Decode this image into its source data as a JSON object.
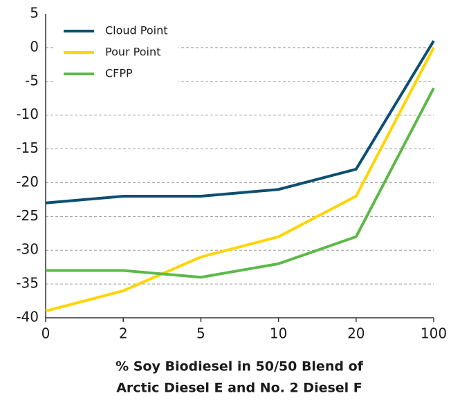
{
  "chart_data": {
    "type": "line",
    "xlabel": [
      "% Soy Biodiesel in 50/50 Blend of",
      "Arctic Diesel E and No. 2 Diesel F"
    ],
    "categories": [
      "0",
      "2",
      "5",
      "10",
      "20",
      "100"
    ],
    "series": [
      {
        "name": "Cloud Point",
        "color": "#0c4f72",
        "values": [
          -23,
          -22,
          -22,
          -21,
          -18,
          1
        ]
      },
      {
        "name": "Pour Point",
        "color": "#ffd500",
        "values": [
          -39,
          -36,
          -31,
          -28,
          -22,
          0
        ]
      },
      {
        "name": "CFPP",
        "color": "#5cb946",
        "values": [
          -33,
          -33,
          -34,
          -32,
          -28,
          -6
        ]
      }
    ],
    "ylim": [
      -40,
      5
    ],
    "yticks": [
      -40,
      -35,
      -30,
      -25,
      -20,
      -15,
      -10,
      -5,
      0,
      5
    ],
    "grid": true,
    "legend": "upper-left"
  }
}
